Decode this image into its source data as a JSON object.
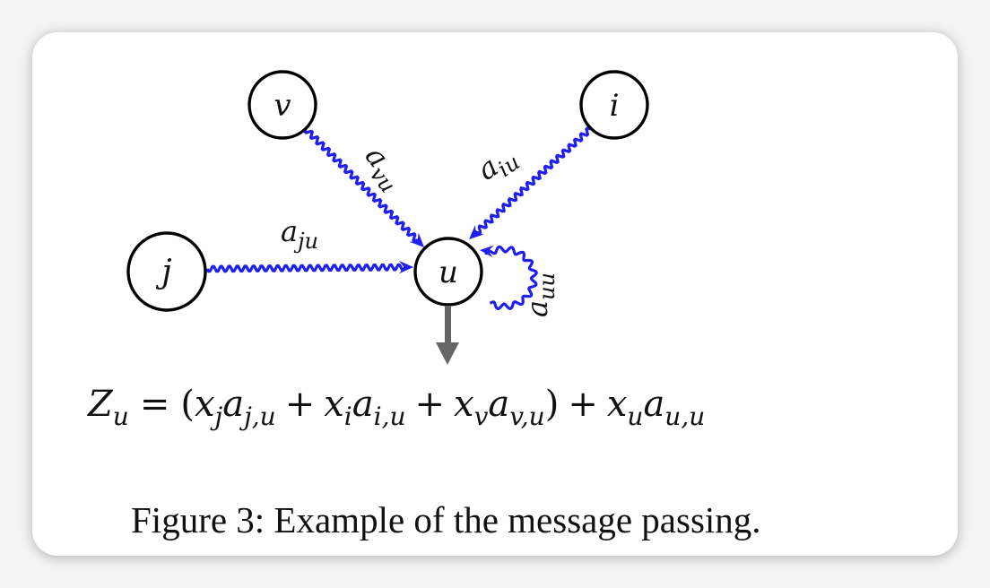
{
  "colors": {
    "edge": "#1f1ff0",
    "node_stroke": "#000000",
    "arrow_out": "#666666",
    "text": "#111111"
  },
  "nodes": {
    "v": "v",
    "i": "i",
    "j": "j",
    "u": "u"
  },
  "edges": {
    "vu": {
      "base": "a",
      "sub": "vu"
    },
    "iu": {
      "base": "a",
      "sub": "iu"
    },
    "ju": {
      "base": "a",
      "sub": "ju"
    },
    "uu": {
      "base": "a",
      "sub": "uu"
    }
  },
  "equation": {
    "lhs": "Z",
    "lhs_sub": "u",
    "eq": "=",
    "open": "(",
    "t1_x": "x",
    "t1_xs": "j",
    "t1_a": "a",
    "t1_as": "j,u",
    "plus1": "+",
    "t2_x": "x",
    "t2_xs": "i",
    "t2_a": "a",
    "t2_as": "i,u",
    "plus2": "+",
    "t3_x": "x",
    "t3_xs": "v",
    "t3_a": "a",
    "t3_as": "v,u",
    "close": ")",
    "plus3": "+",
    "t4_x": "x",
    "t4_xs": "u",
    "t4_a": "a",
    "t4_as": "u,u"
  },
  "caption": "Figure 3: Example of the message passing."
}
